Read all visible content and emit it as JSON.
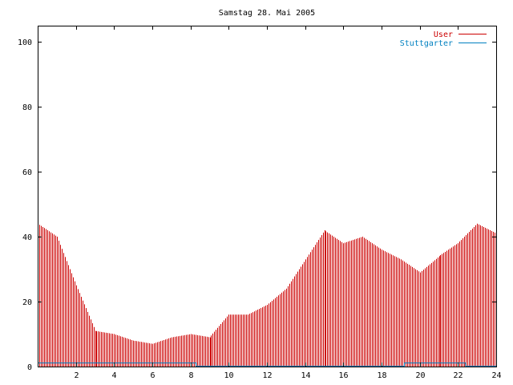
{
  "chart_data": {
    "type": "bar",
    "title": "Samstag 28. Mai 2005",
    "xlabel": "",
    "ylabel": "",
    "xlim": [
      0,
      24
    ],
    "ylim": [
      0,
      105
    ],
    "xticks": [
      "2",
      "4",
      "6",
      "8",
      "10",
      "12",
      "14",
      "16",
      "18",
      "20",
      "22",
      "24"
    ],
    "yticks": [
      "0",
      "20",
      "40",
      "60",
      "80",
      "100"
    ],
    "grid": false,
    "legend_position": "top-right",
    "series": [
      {
        "name": "User",
        "color": "#cc0000",
        "x": [
          0.0,
          1.0,
          2.0,
          3.0,
          4.0,
          5.0,
          6.0,
          7.0,
          8.0,
          9.0,
          10.0,
          11.0,
          12.0,
          13.0,
          14.0,
          15.0,
          16.0,
          17.0,
          18.0,
          19.0,
          20.0,
          21.0,
          22.0,
          23.0,
          24.0
        ],
        "values": [
          44,
          40,
          25,
          11,
          10,
          8,
          7,
          9,
          10,
          9,
          16,
          16,
          19,
          24,
          33,
          42,
          38,
          40,
          36,
          33,
          29,
          34,
          38,
          44,
          41
        ]
      },
      {
        "name": "Stuttgarter",
        "color": "#0080c0",
        "x": [
          0.0,
          8.3,
          8.3,
          19.2,
          19.2,
          22.4,
          22.4,
          24.0
        ],
        "values": [
          1,
          1,
          0,
          0,
          1,
          1,
          0,
          0
        ]
      }
    ]
  }
}
